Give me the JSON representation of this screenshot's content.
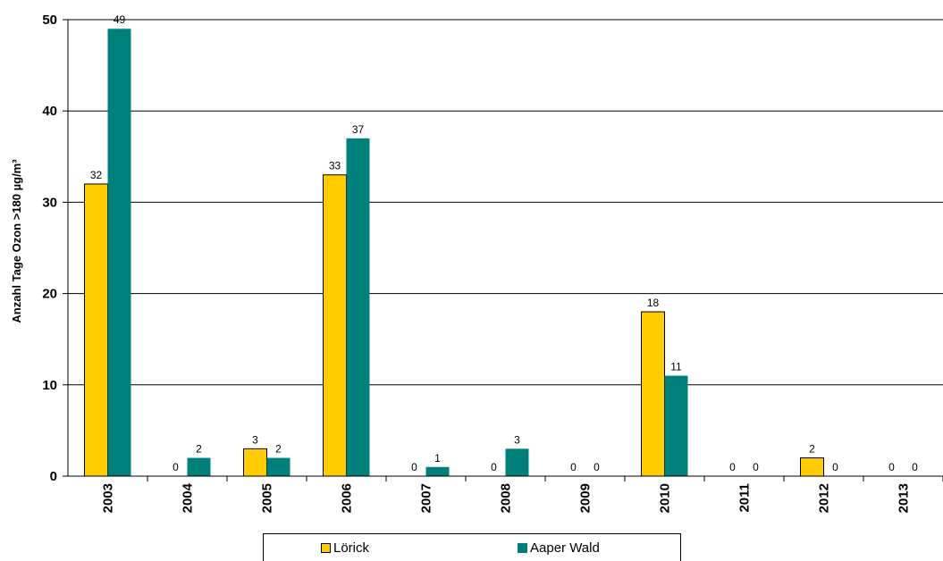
{
  "chart_data": {
    "type": "bar",
    "title": "",
    "xlabel": "",
    "ylabel": "Anzahl Tage Ozon >180 µg/m³",
    "ylim": [
      0,
      50
    ],
    "yticks": [
      "0",
      "10",
      "20",
      "30",
      "40",
      "50"
    ],
    "grid": true,
    "legend_position": "bottom",
    "categories": [
      "2003",
      "2004",
      "2005",
      "2006",
      "2007",
      "2008",
      "2009",
      "2010",
      "2011",
      "2012",
      "2013"
    ],
    "series": [
      {
        "name": "Lörick",
        "color": "#FFCC00",
        "values": [
          32,
          0,
          3,
          33,
          0,
          0,
          0,
          18,
          0,
          2,
          0
        ]
      },
      {
        "name": "Aaper Wald",
        "color": "#00807A",
        "values": [
          49,
          2,
          2,
          37,
          1,
          3,
          0,
          11,
          0,
          0,
          0
        ]
      }
    ]
  }
}
